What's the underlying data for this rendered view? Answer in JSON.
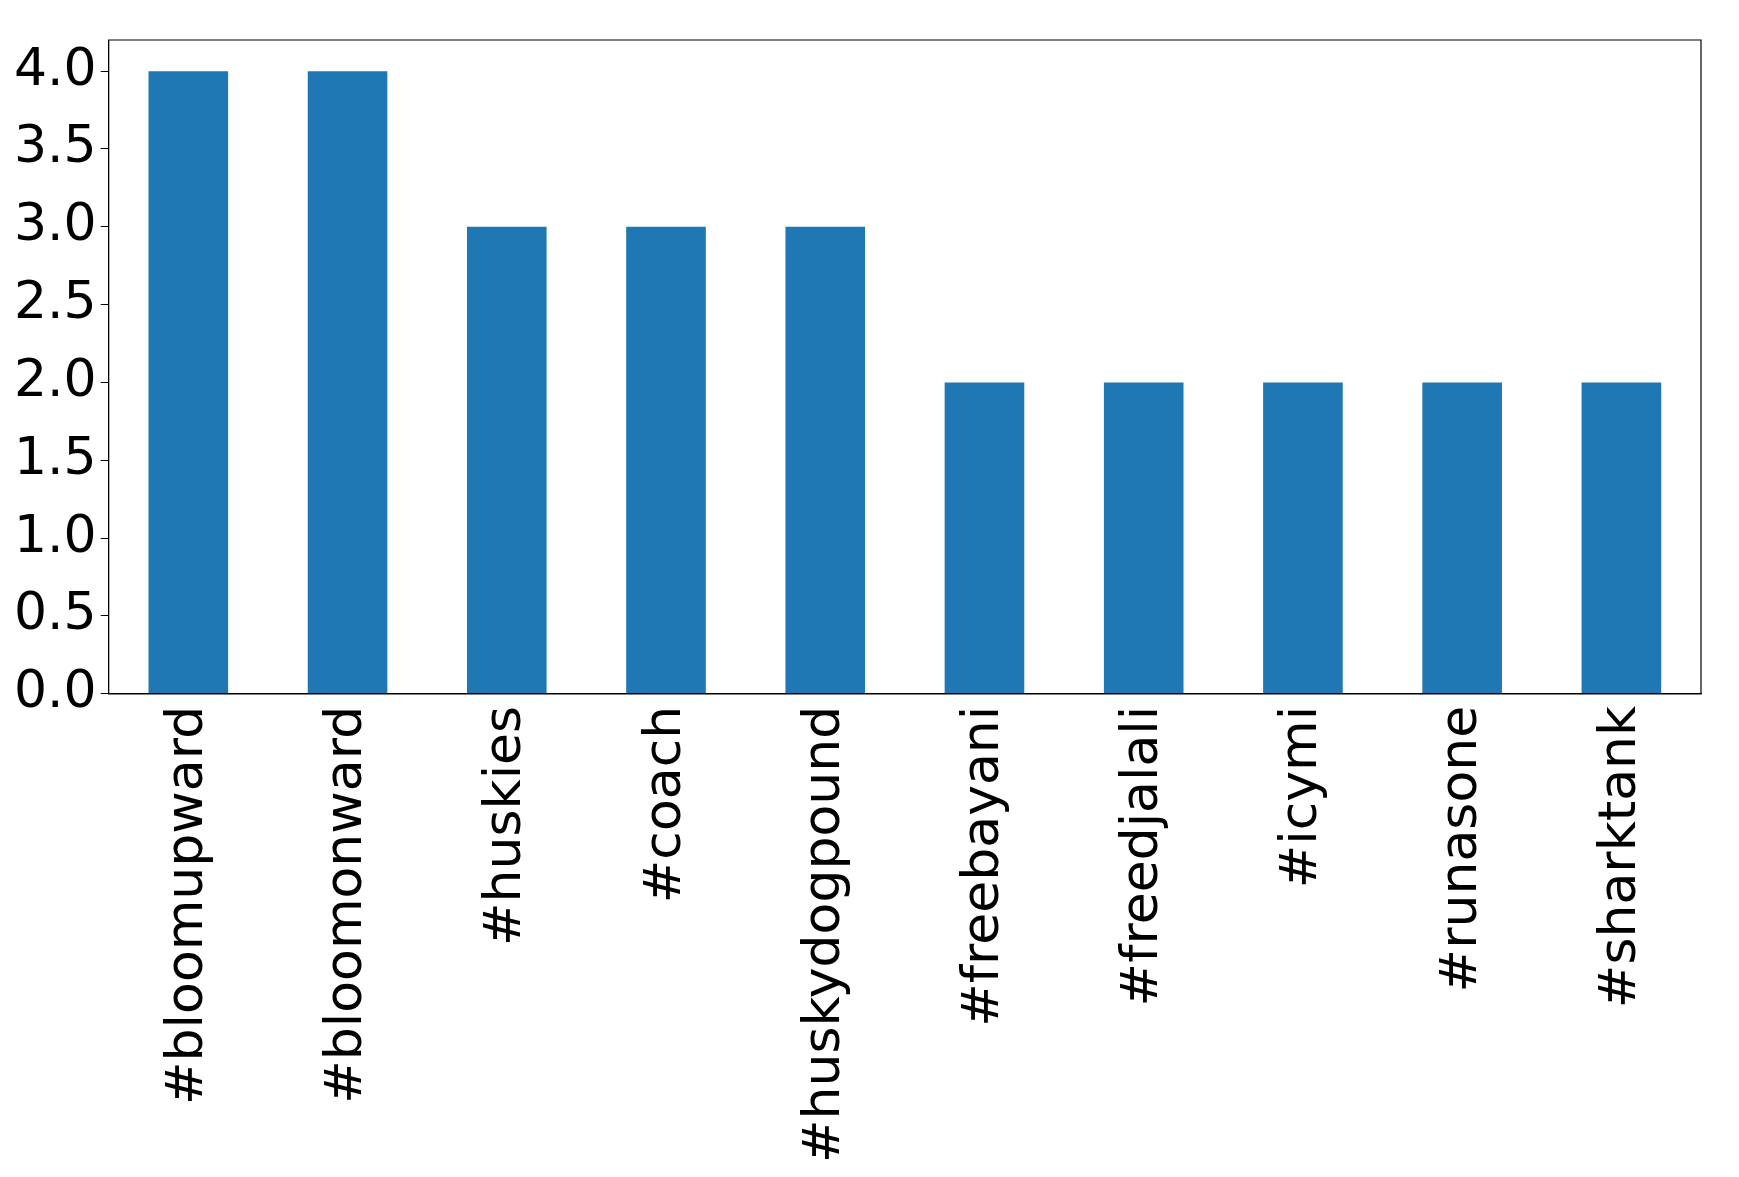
{
  "chart_data": {
    "type": "bar",
    "categories": [
      "#bloomupward",
      "#bloomonward",
      "#huskies",
      "#coach",
      "#huskydogpound",
      "#freebayani",
      "#freedjalali",
      "#icymi",
      "#runasone",
      "#sharktank"
    ],
    "values": [
      4,
      4,
      3,
      3,
      3,
      2,
      2,
      2,
      2,
      2
    ],
    "color": "#1f77b4",
    "ylim": [
      0,
      4.2
    ],
    "yticks": [
      {
        "value": 0,
        "label": "0.0"
      },
      {
        "value": 0.5,
        "label": "0.5"
      },
      {
        "value": 1,
        "label": "1.0"
      },
      {
        "value": 1.5,
        "label": "1.5"
      },
      {
        "value": 2,
        "label": "2.0"
      },
      {
        "value": 2.5,
        "label": "2.5"
      },
      {
        "value": 3,
        "label": "3.0"
      },
      {
        "value": 3.5,
        "label": "3.5"
      },
      {
        "value": 4,
        "label": "4.0"
      }
    ],
    "grid": false,
    "legend": false
  }
}
